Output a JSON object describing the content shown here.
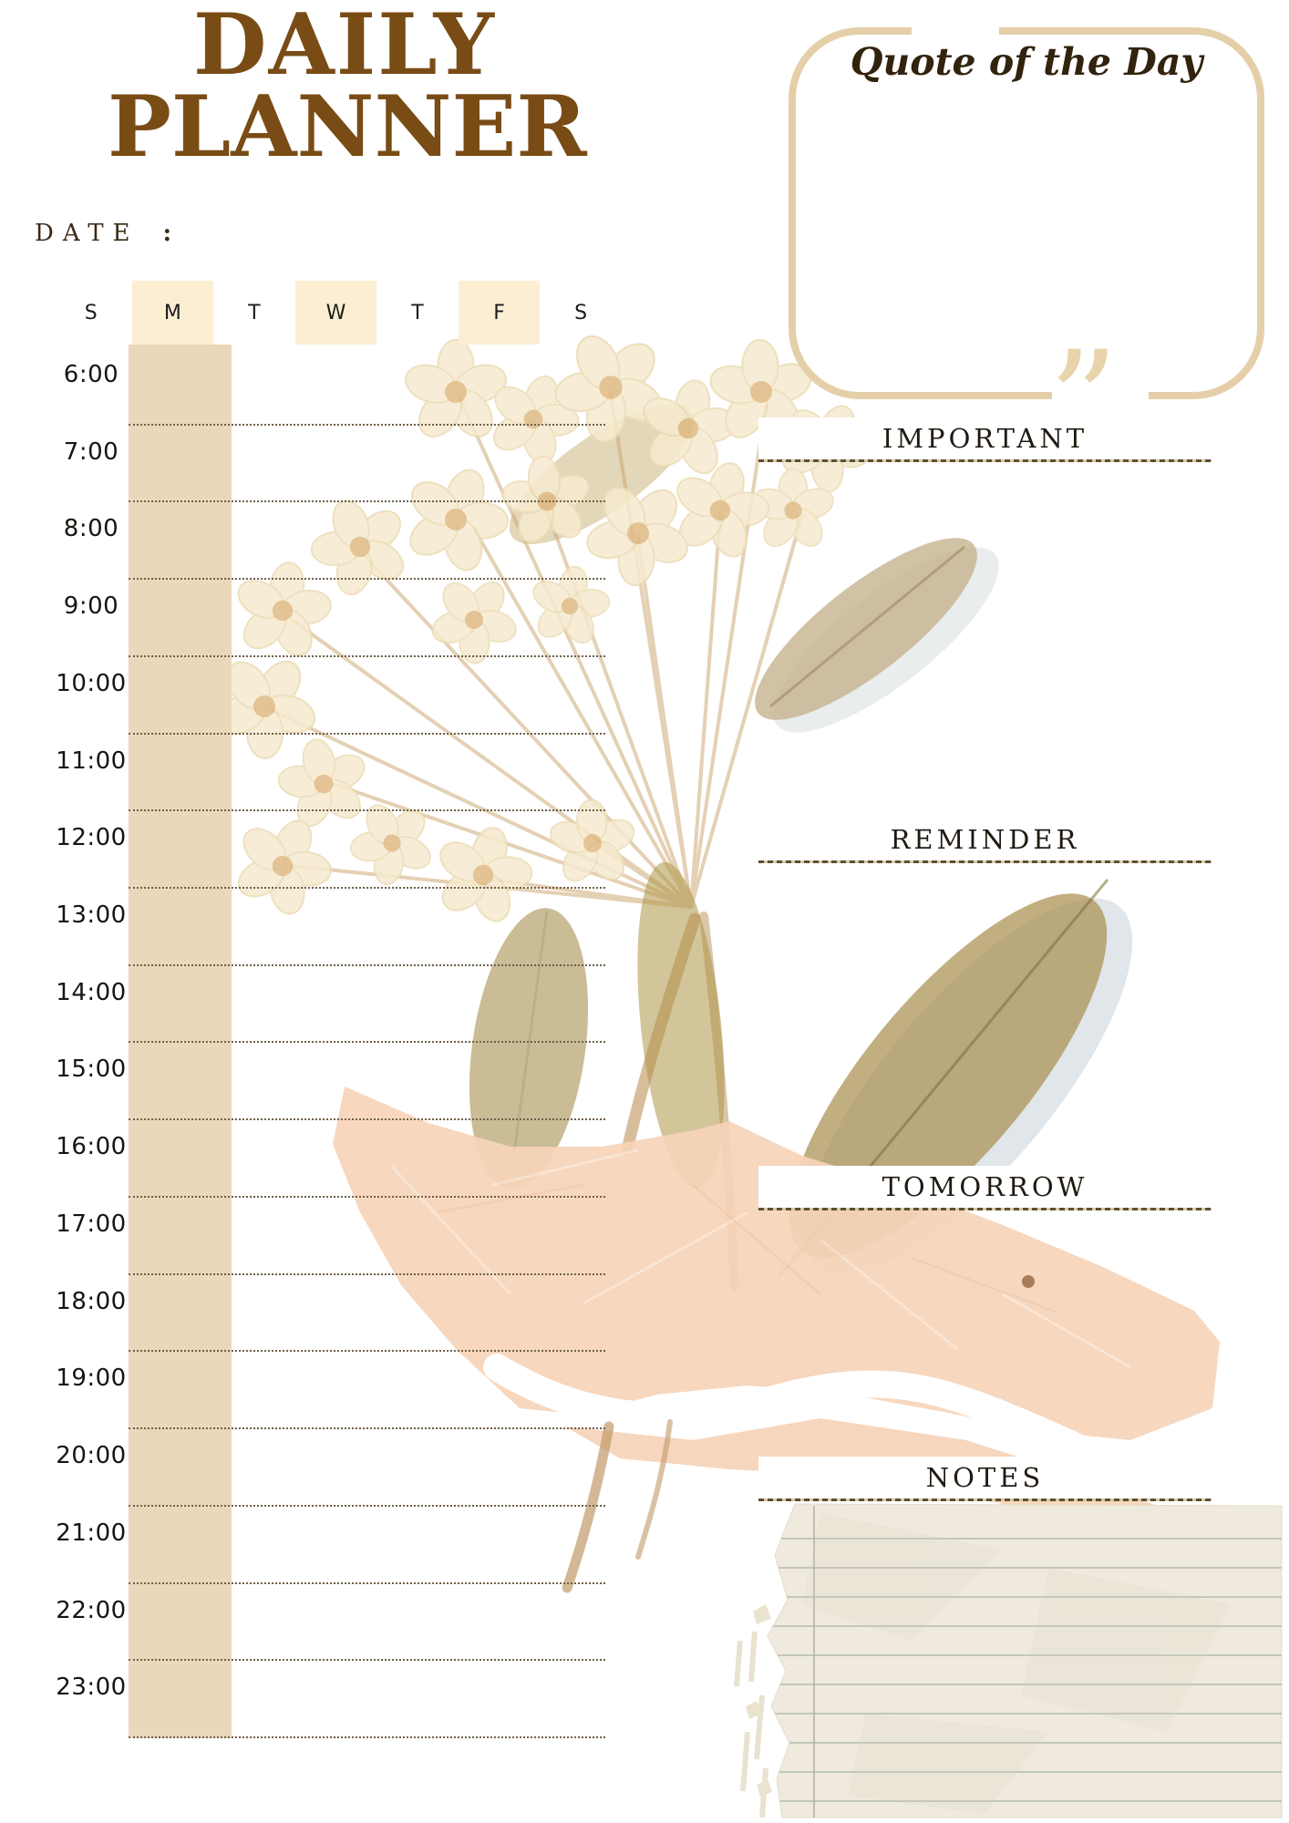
{
  "header": {
    "title_line1": "DAILY",
    "title_line2": "PLANNER"
  },
  "date_field": {
    "label": "DATE",
    "colon": ":"
  },
  "quote_box": {
    "heading": "Quote of the Day",
    "open_quote_icon": "“",
    "close_quote_icon": "”"
  },
  "week_strip": {
    "days": [
      {
        "label": "S",
        "highlighted": false
      },
      {
        "label": "M",
        "highlighted": true
      },
      {
        "label": "T",
        "highlighted": false
      },
      {
        "label": "W",
        "highlighted": true
      },
      {
        "label": "T",
        "highlighted": false
      },
      {
        "label": "F",
        "highlighted": true
      },
      {
        "label": "S",
        "highlighted": false
      }
    ]
  },
  "schedule": {
    "times": [
      "6:00",
      "7:00",
      "8:00",
      "9:00",
      "10:00",
      "11:00",
      "12:00",
      "13:00",
      "14:00",
      "15:00",
      "16:00",
      "17:00",
      "18:00",
      "19:00",
      "20:00",
      "21:00",
      "22:00",
      "23:00"
    ]
  },
  "sections": [
    {
      "label": "IMPORTANT"
    },
    {
      "label": "REMINDER"
    },
    {
      "label": "TOMORROW"
    },
    {
      "label": "NOTES"
    }
  ],
  "colors": {
    "title_brown": "#794c15",
    "accent_tan": "#e4cfa9",
    "day_highlight": "#fbeed3",
    "monday_column": "#ebd8bb",
    "ink": "#201a12",
    "peach_paper": "#f7d4b9",
    "olive_leaf": "#a8914f",
    "notes_paper": "#efeadd"
  }
}
